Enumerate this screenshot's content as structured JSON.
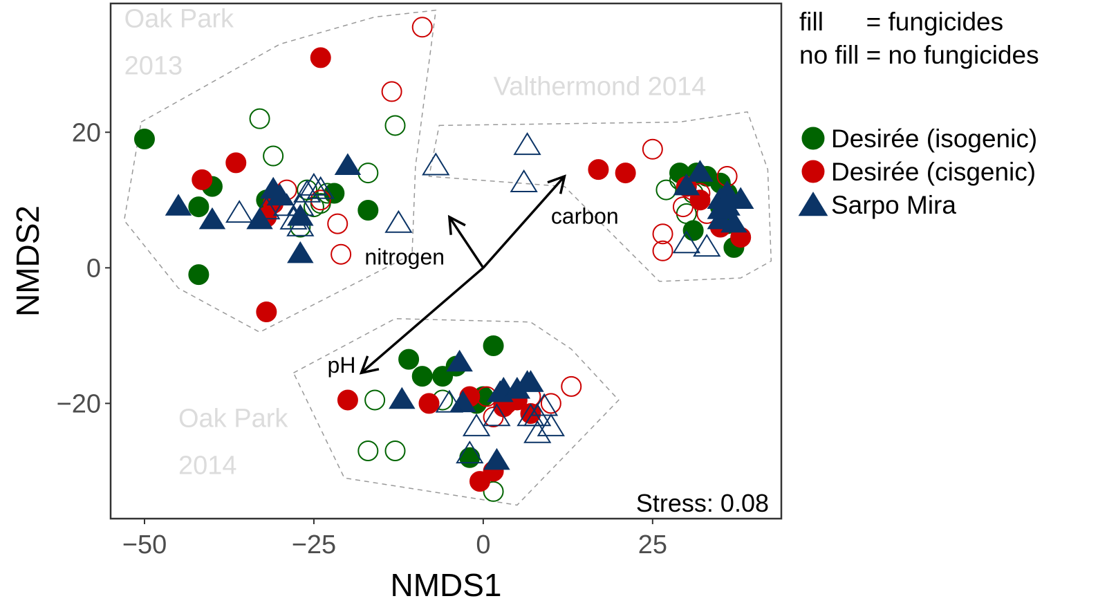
{
  "chart_data": {
    "type": "scatter",
    "title": "",
    "xlabel": "NMDS1",
    "ylabel": "NMDS2",
    "xlim": [
      -55,
      44
    ],
    "ylim": [
      -37,
      39
    ],
    "xticks": [
      -50,
      -25,
      0,
      25
    ],
    "yticks": [
      -20,
      0,
      20
    ],
    "xtick_labels": [
      "−50",
      "−25",
      "0",
      "25"
    ],
    "ytick_labels": [
      "−20",
      "0",
      "20"
    ],
    "grid": false,
    "stress_text": "Stress: 0.08",
    "fill_note": [
      "fill      = fungicides",
      "no fill = no fungicides"
    ],
    "colors": {
      "isogenic": "#006400",
      "cisgenic": "#cc0000",
      "sarpo": "#0b3466",
      "hull": "#999999",
      "region_label": "#dcdcdc"
    },
    "legend": [
      {
        "label": "Desirée (isogenic)",
        "series": "isogenic",
        "shape": "circle"
      },
      {
        "label": "Desirée (cisgenic)",
        "series": "cisgenic",
        "shape": "circle"
      },
      {
        "label": "Sarpo Mira",
        "series": "sarpo",
        "shape": "triangle"
      }
    ],
    "regions": [
      {
        "label_lines": [
          "Oak Park",
          "2013"
        ],
        "label_anchor": [
          -53,
          35.5
        ],
        "hull": [
          [
            -50.5,
            21.5
          ],
          [
            -30,
            33
          ],
          [
            -16,
            37
          ],
          [
            -7,
            38
          ],
          [
            -10,
            15
          ],
          [
            -10.5,
            2
          ],
          [
            -33,
            -9.5
          ],
          [
            -45,
            -3
          ],
          [
            -53,
            7
          ]
        ]
      },
      {
        "label_lines": [
          "Valthermond 2014"
        ],
        "label_anchor": [
          1.5,
          25.5
        ],
        "hull": [
          [
            -6.5,
            21
          ],
          [
            29,
            21.5
          ],
          [
            39,
            23
          ],
          [
            42,
            14.5
          ],
          [
            42.5,
            1
          ],
          [
            38,
            -1.5
          ],
          [
            26,
            -2
          ],
          [
            12,
            12
          ],
          [
            -8,
            13.5
          ]
        ]
      },
      {
        "label_lines": [
          "Oak Park",
          "2014"
        ],
        "label_anchor": [
          -45,
          -23.5
        ],
        "hull": [
          [
            -28,
            -15.5
          ],
          [
            -13,
            -7.5
          ],
          [
            7,
            -8
          ],
          [
            13,
            -12
          ],
          [
            20,
            -19.5
          ],
          [
            5,
            -35
          ],
          [
            -20.5,
            -31
          ]
        ]
      }
    ],
    "vectors": [
      {
        "label": "carbon",
        "end": [
          12,
          13.5
        ],
        "label_anchor": [
          10,
          6.5
        ]
      },
      {
        "label": "nitrogen",
        "end": [
          -5,
          7.5
        ],
        "label_anchor": [
          -17.5,
          0.5
        ]
      },
      {
        "label": "pH",
        "end": [
          -18,
          -15.5
        ],
        "label_anchor": [
          -23,
          -15.5
        ]
      }
    ],
    "series": [
      {
        "name": "Desirée (isogenic)",
        "key": "isogenic",
        "shape": "circle",
        "filled": true,
        "x": [
          -50,
          -42,
          -40,
          -42,
          -32,
          -22,
          -17,
          -11,
          -9,
          -6,
          -4,
          1.5,
          -1,
          -2,
          0,
          29,
          31.5,
          33,
          35,
          36,
          35,
          36,
          31,
          37
        ],
        "y": [
          19,
          9,
          12,
          -1,
          10,
          11,
          8.5,
          -13.5,
          -16,
          -16,
          -14.5,
          -11.5,
          -20,
          -28,
          -19,
          14,
          14,
          13.5,
          12.5,
          11,
          9,
          6.5,
          5.5,
          3
        ]
      },
      {
        "name": "Desirée (isogenic)",
        "key": "isogenic",
        "shape": "circle",
        "filled": false,
        "x": [
          -33,
          -31,
          -26,
          -25,
          -27,
          -23,
          -24,
          -17,
          -13,
          -16,
          -6,
          -17,
          -13,
          -1,
          1.5,
          27,
          29,
          30,
          31
        ],
        "y": [
          22,
          16.5,
          11.5,
          9,
          6,
          11,
          9.5,
          14,
          21,
          -19.5,
          -19.5,
          -27,
          -27,
          -19.5,
          -33,
          11.5,
          13,
          8,
          11
        ]
      },
      {
        "name": "Desirée (cisgenic)",
        "key": "cisgenic",
        "shape": "circle",
        "filled": true,
        "x": [
          -24,
          -36.5,
          -41.5,
          -32,
          -31,
          -32,
          -8,
          -2,
          -20,
          3,
          5,
          7,
          -0.5,
          1.5,
          17,
          21,
          30,
          32,
          35,
          38
        ],
        "y": [
          31,
          15.5,
          13,
          -6.5,
          9.5,
          7.5,
          -20,
          -19,
          -19.5,
          -20.5,
          -19.5,
          -21.5,
          -31.5,
          -30,
          14.5,
          14,
          12,
          10,
          6,
          4.5
        ]
      },
      {
        "name": "Desirée (cisgenic)",
        "key": "cisgenic",
        "shape": "circle",
        "filled": false,
        "x": [
          -9,
          -13.5,
          -29,
          -24,
          -21.5,
          -21,
          0.5,
          1.5,
          3.5,
          7,
          10,
          13,
          25,
          26.5,
          26.5,
          32,
          33,
          36,
          29.5
        ],
        "y": [
          35.5,
          26,
          11.5,
          10,
          6.5,
          2,
          -19,
          -22,
          -20,
          -19,
          -20,
          -17.5,
          17.5,
          5,
          2.5,
          11,
          8,
          13.5,
          9
        ]
      },
      {
        "name": "Sarpo Mira",
        "key": "sarpo",
        "shape": "triangle",
        "filled": true,
        "x": [
          -45,
          -40,
          -33,
          -31,
          -30,
          -27,
          -20,
          -27,
          -12,
          -3.5,
          -3,
          3,
          7,
          2,
          2.5,
          5,
          6.5,
          30,
          32,
          35,
          36,
          38,
          36,
          35,
          37,
          35
        ],
        "y": [
          9,
          7,
          7,
          11.5,
          10.5,
          7.5,
          15,
          2,
          -19.5,
          -14,
          -20,
          -18,
          -17,
          -28.5,
          -18.5,
          -18,
          -17,
          12,
          14,
          10,
          11,
          10,
          9,
          7,
          6.5,
          8.5
        ]
      },
      {
        "name": "Sarpo Mira",
        "key": "sarpo",
        "shape": "triangle",
        "filled": false,
        "x": [
          -36,
          -32,
          -29,
          -27,
          -28,
          -27,
          -26,
          -25,
          -24,
          -12.5,
          -7,
          6.5,
          6,
          -5,
          -1,
          2,
          -2,
          7,
          8,
          9,
          10,
          8,
          30,
          33
        ],
        "y": [
          8,
          8.5,
          9,
          9,
          7,
          6,
          11,
          12,
          11.5,
          6.5,
          15,
          18,
          12.5,
          -20,
          -23.5,
          -22,
          -27.5,
          -22,
          -24.5,
          -20.5,
          -23.5,
          -22,
          3.5,
          3
        ]
      }
    ]
  }
}
